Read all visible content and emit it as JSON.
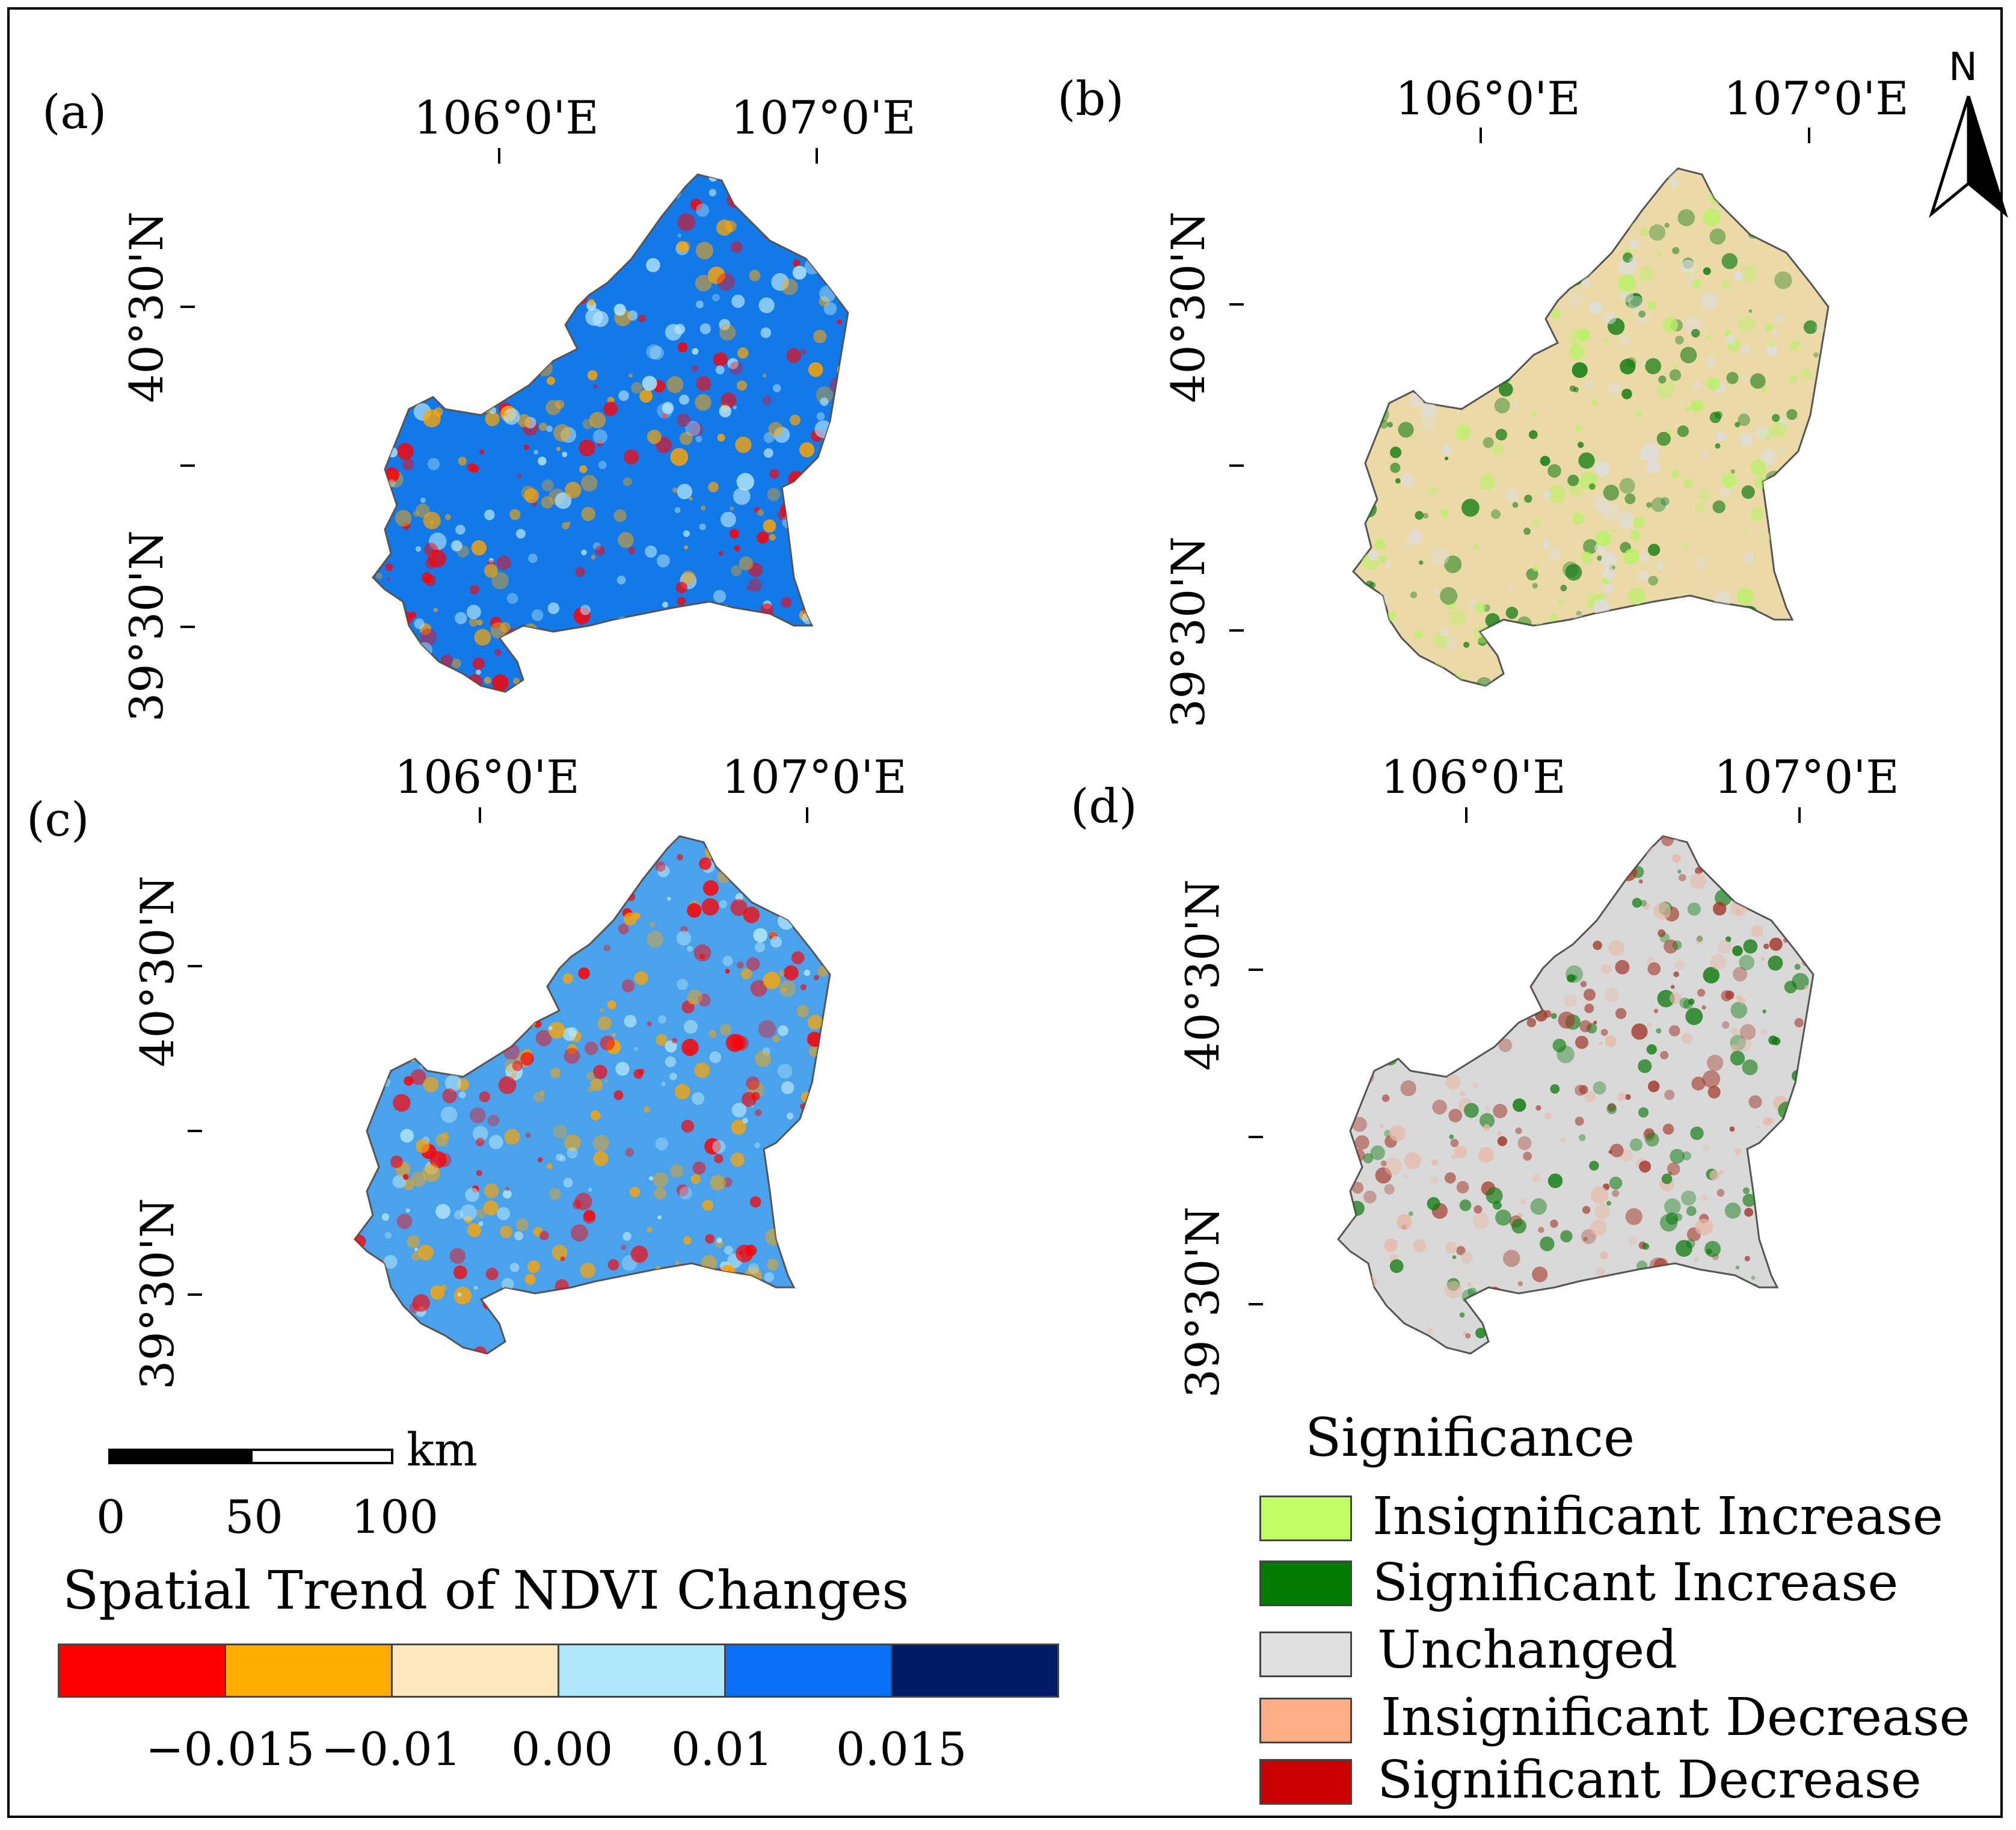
{
  "panels": [
    {
      "label": "(a)",
      "kind": "trend",
      "lon_ticks": [
        "106°0'E",
        "107°0'E"
      ],
      "lat_ticks": [
        "40°30'N",
        "39°30'N"
      ],
      "base_color": "#1479e8",
      "accents": [
        "#b6e7fb",
        "#ff0000",
        "#ffa500"
      ]
    },
    {
      "label": "(b)",
      "kind": "significance",
      "lon_ticks": [
        "106°0'E",
        "107°0'E"
      ],
      "lat_ticks": [
        "40°30'N",
        "39°30'N"
      ],
      "base_color": "#ecd9a8",
      "accents": [
        "#b7f266",
        "#0f7a10",
        "#dedede"
      ]
    },
    {
      "label": "(c)",
      "kind": "trend",
      "lon_ticks": [
        "106°0'E",
        "107°0'E"
      ],
      "lat_ticks": [
        "40°30'N",
        "39°30'N"
      ],
      "base_color": "#4aa2ec",
      "accents": [
        "#b6e7fb",
        "#ffa500",
        "#ff0000"
      ]
    },
    {
      "label": "(d)",
      "kind": "significance",
      "lon_ticks": [
        "106°0'E",
        "107°0'E"
      ],
      "lat_ticks": [
        "40°30'N",
        "39°30'N"
      ],
      "base_color": "#d9d9d9",
      "accents": [
        "#a23a2e",
        "#0f7a10",
        "#e7b9a8"
      ]
    }
  ],
  "north_arrow": {
    "label": "N"
  },
  "scale_bar": {
    "unit": "km",
    "ticks": [
      "0",
      "50",
      "100"
    ]
  },
  "colorbar": {
    "title": "Spatial Trend of NDVI Changes",
    "colors": [
      "#ff0000",
      "#ffab00",
      "#fde8bd",
      "#b0e8fb",
      "#0a6ff5",
      "#001a66"
    ],
    "tick_labels": [
      "−0.015",
      "−0.01",
      "0.00",
      "0.01",
      "0.015"
    ]
  },
  "significance_legend": {
    "title": "Significance",
    "items": [
      {
        "label": "Insignificant Increase",
        "color": "#c1ff66"
      },
      {
        "label": "Significant Increase",
        "color": "#007a00"
      },
      {
        "label": "Unchanged",
        "color": "#e0e0e0"
      },
      {
        "label": "Insignificant Decrease",
        "color": "#ffae85"
      },
      {
        "label": "Significant Decrease",
        "color": "#c80000"
      }
    ]
  }
}
